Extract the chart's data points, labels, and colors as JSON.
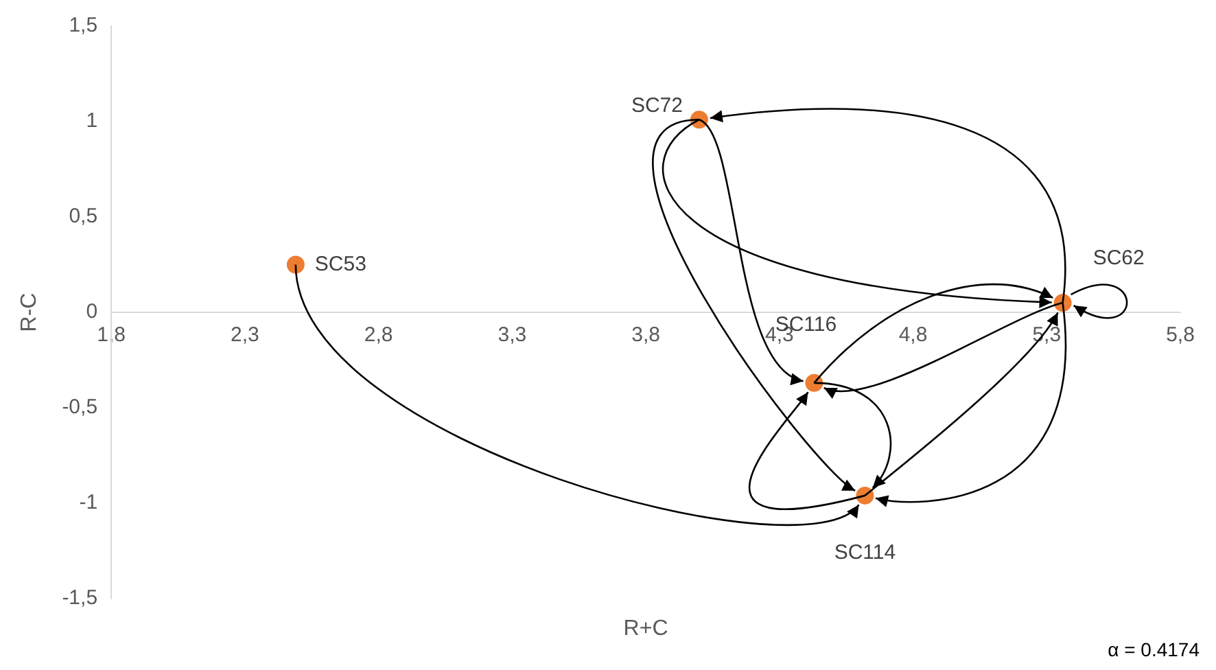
{
  "chart_data": {
    "type": "scatter",
    "xlabel": "R+C",
    "ylabel": "R-C",
    "annotations": [
      "α = 0.4174"
    ],
    "xlim": [
      1.8,
      5.8
    ],
    "xticks": [
      {
        "value": 1.8,
        "label": "1,8"
      },
      {
        "value": 2.3,
        "label": "2,3"
      },
      {
        "value": 2.8,
        "label": "2,8"
      },
      {
        "value": 3.3,
        "label": "3,3"
      },
      {
        "value": 3.8,
        "label": "3,8"
      },
      {
        "value": 4.3,
        "label": "4,3"
      },
      {
        "value": 4.8,
        "label": "4,8"
      },
      {
        "value": 5.3,
        "label": "5,3"
      },
      {
        "value": 5.8,
        "label": "5,8"
      }
    ],
    "ylim": [
      -1.5,
      1.5
    ],
    "yticks": [
      {
        "value": -1.5,
        "label": "-1,5"
      },
      {
        "value": -1,
        "label": "-1"
      },
      {
        "value": -0.5,
        "label": "-0,5"
      },
      0,
      {
        "value": 0.5,
        "label": "0,5"
      },
      1,
      {
        "value": 1.5,
        "label": "1,5"
      }
    ],
    "grid": false,
    "legend": false,
    "marker": "circle",
    "series": [
      {
        "name": "SC53",
        "color": "#ed7d31",
        "x": [
          2.49
        ],
        "values": [
          0.25
        ]
      },
      {
        "name": "SC72",
        "color": "#ed7d31",
        "x": [
          4.0
        ],
        "values": [
          1.01
        ]
      },
      {
        "name": "SC62",
        "color": "#ed7d31",
        "x": [
          5.36
        ],
        "values": [
          0.05
        ]
      },
      {
        "name": "SC116",
        "color": "#ed7d31",
        "x": [
          4.43
        ],
        "values": [
          -0.37
        ]
      },
      {
        "name": "SC114",
        "color": "#ed7d31",
        "x": [
          4.62
        ],
        "values": [
          -0.96
        ]
      }
    ]
  }
}
